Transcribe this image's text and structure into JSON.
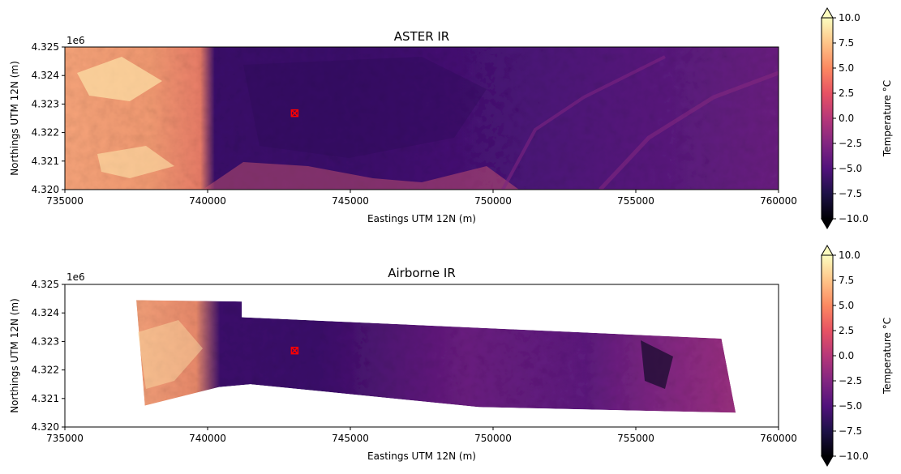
{
  "chart_data": [
    {
      "type": "heatmap",
      "title": "ASTER IR",
      "xlabel": "Eastings UTM 12N (m)",
      "ylabel": "Northings UTM 12N (m)",
      "xlim": [
        735000,
        760000
      ],
      "ylim": [
        4.32,
        4.325
      ],
      "y_offset_label": "1e6",
      "x_ticks": [
        735000,
        740000,
        745000,
        750000,
        755000,
        760000
      ],
      "x_tick_labels": [
        "735000",
        "740000",
        "745000",
        "750000",
        "755000",
        "760000"
      ],
      "y_ticks": [
        4.32,
        4.321,
        4.322,
        4.323,
        4.324,
        4.325
      ],
      "y_tick_labels": [
        "4.320",
        "4.321",
        "4.322",
        "4.323",
        "4.324",
        "4.325"
      ],
      "marker": {
        "x": 743050,
        "y": 4.32268,
        "shape": "x",
        "color": "#ff0000"
      },
      "colorbar": {
        "label": "Temperature °C",
        "colormap": "magma",
        "range": [
          -10,
          10
        ],
        "ticks": [
          -10,
          -7.5,
          -5,
          -2.5,
          0,
          2.5,
          5,
          7.5,
          10
        ],
        "tick_labels": [
          "−10.0",
          "−7.5",
          "−5.0",
          "−2.5",
          "0.0",
          "2.5",
          "5.0",
          "7.5",
          "10.0"
        ],
        "extend": "both"
      },
      "coverage": "full",
      "regions": [
        {
          "x": [
            735000,
            740500
          ],
          "temperature_c": 5
        },
        {
          "x": [
            740500,
            760000
          ],
          "temperature_c": -5
        }
      ]
    },
    {
      "type": "heatmap",
      "title": "Airborne IR",
      "xlabel": "Eastings UTM 12N (m)",
      "ylabel": "Northings UTM 12N (m)",
      "xlim": [
        735000,
        760000
      ],
      "ylim": [
        4.32,
        4.325
      ],
      "y_offset_label": "1e6",
      "x_ticks": [
        735000,
        740000,
        745000,
        750000,
        755000,
        760000
      ],
      "x_tick_labels": [
        "735000",
        "740000",
        "745000",
        "750000",
        "755000",
        "760000"
      ],
      "y_ticks": [
        4.32,
        4.321,
        4.322,
        4.323,
        4.324,
        4.325
      ],
      "y_tick_labels": [
        "4.320",
        "4.321",
        "4.322",
        "4.323",
        "4.324",
        "4.325"
      ],
      "marker": {
        "x": 743050,
        "y": 4.32268,
        "shape": "x",
        "color": "#ff0000"
      },
      "colorbar": {
        "label": "Temperature °C",
        "colormap": "magma",
        "range": [
          -10,
          10
        ],
        "ticks": [
          -10,
          -7.5,
          -5,
          -2.5,
          0,
          2.5,
          5,
          7.5,
          10
        ],
        "tick_labels": [
          "−10.0",
          "−7.5",
          "−5.0",
          "−2.5",
          "0.0",
          "2.5",
          "5.0",
          "7.5",
          "10.0"
        ],
        "extend": "both"
      },
      "coverage": "strip",
      "strip_footprint": [
        [
          737500,
          4.32445
        ],
        [
          741200,
          4.3244
        ],
        [
          741200,
          4.32385
        ],
        [
          758000,
          4.3231
        ],
        [
          758500,
          4.3205
        ],
        [
          749500,
          4.3207
        ],
        [
          741500,
          4.3215
        ],
        [
          740400,
          4.3214
        ],
        [
          737800,
          4.32075
        ]
      ]
    }
  ]
}
